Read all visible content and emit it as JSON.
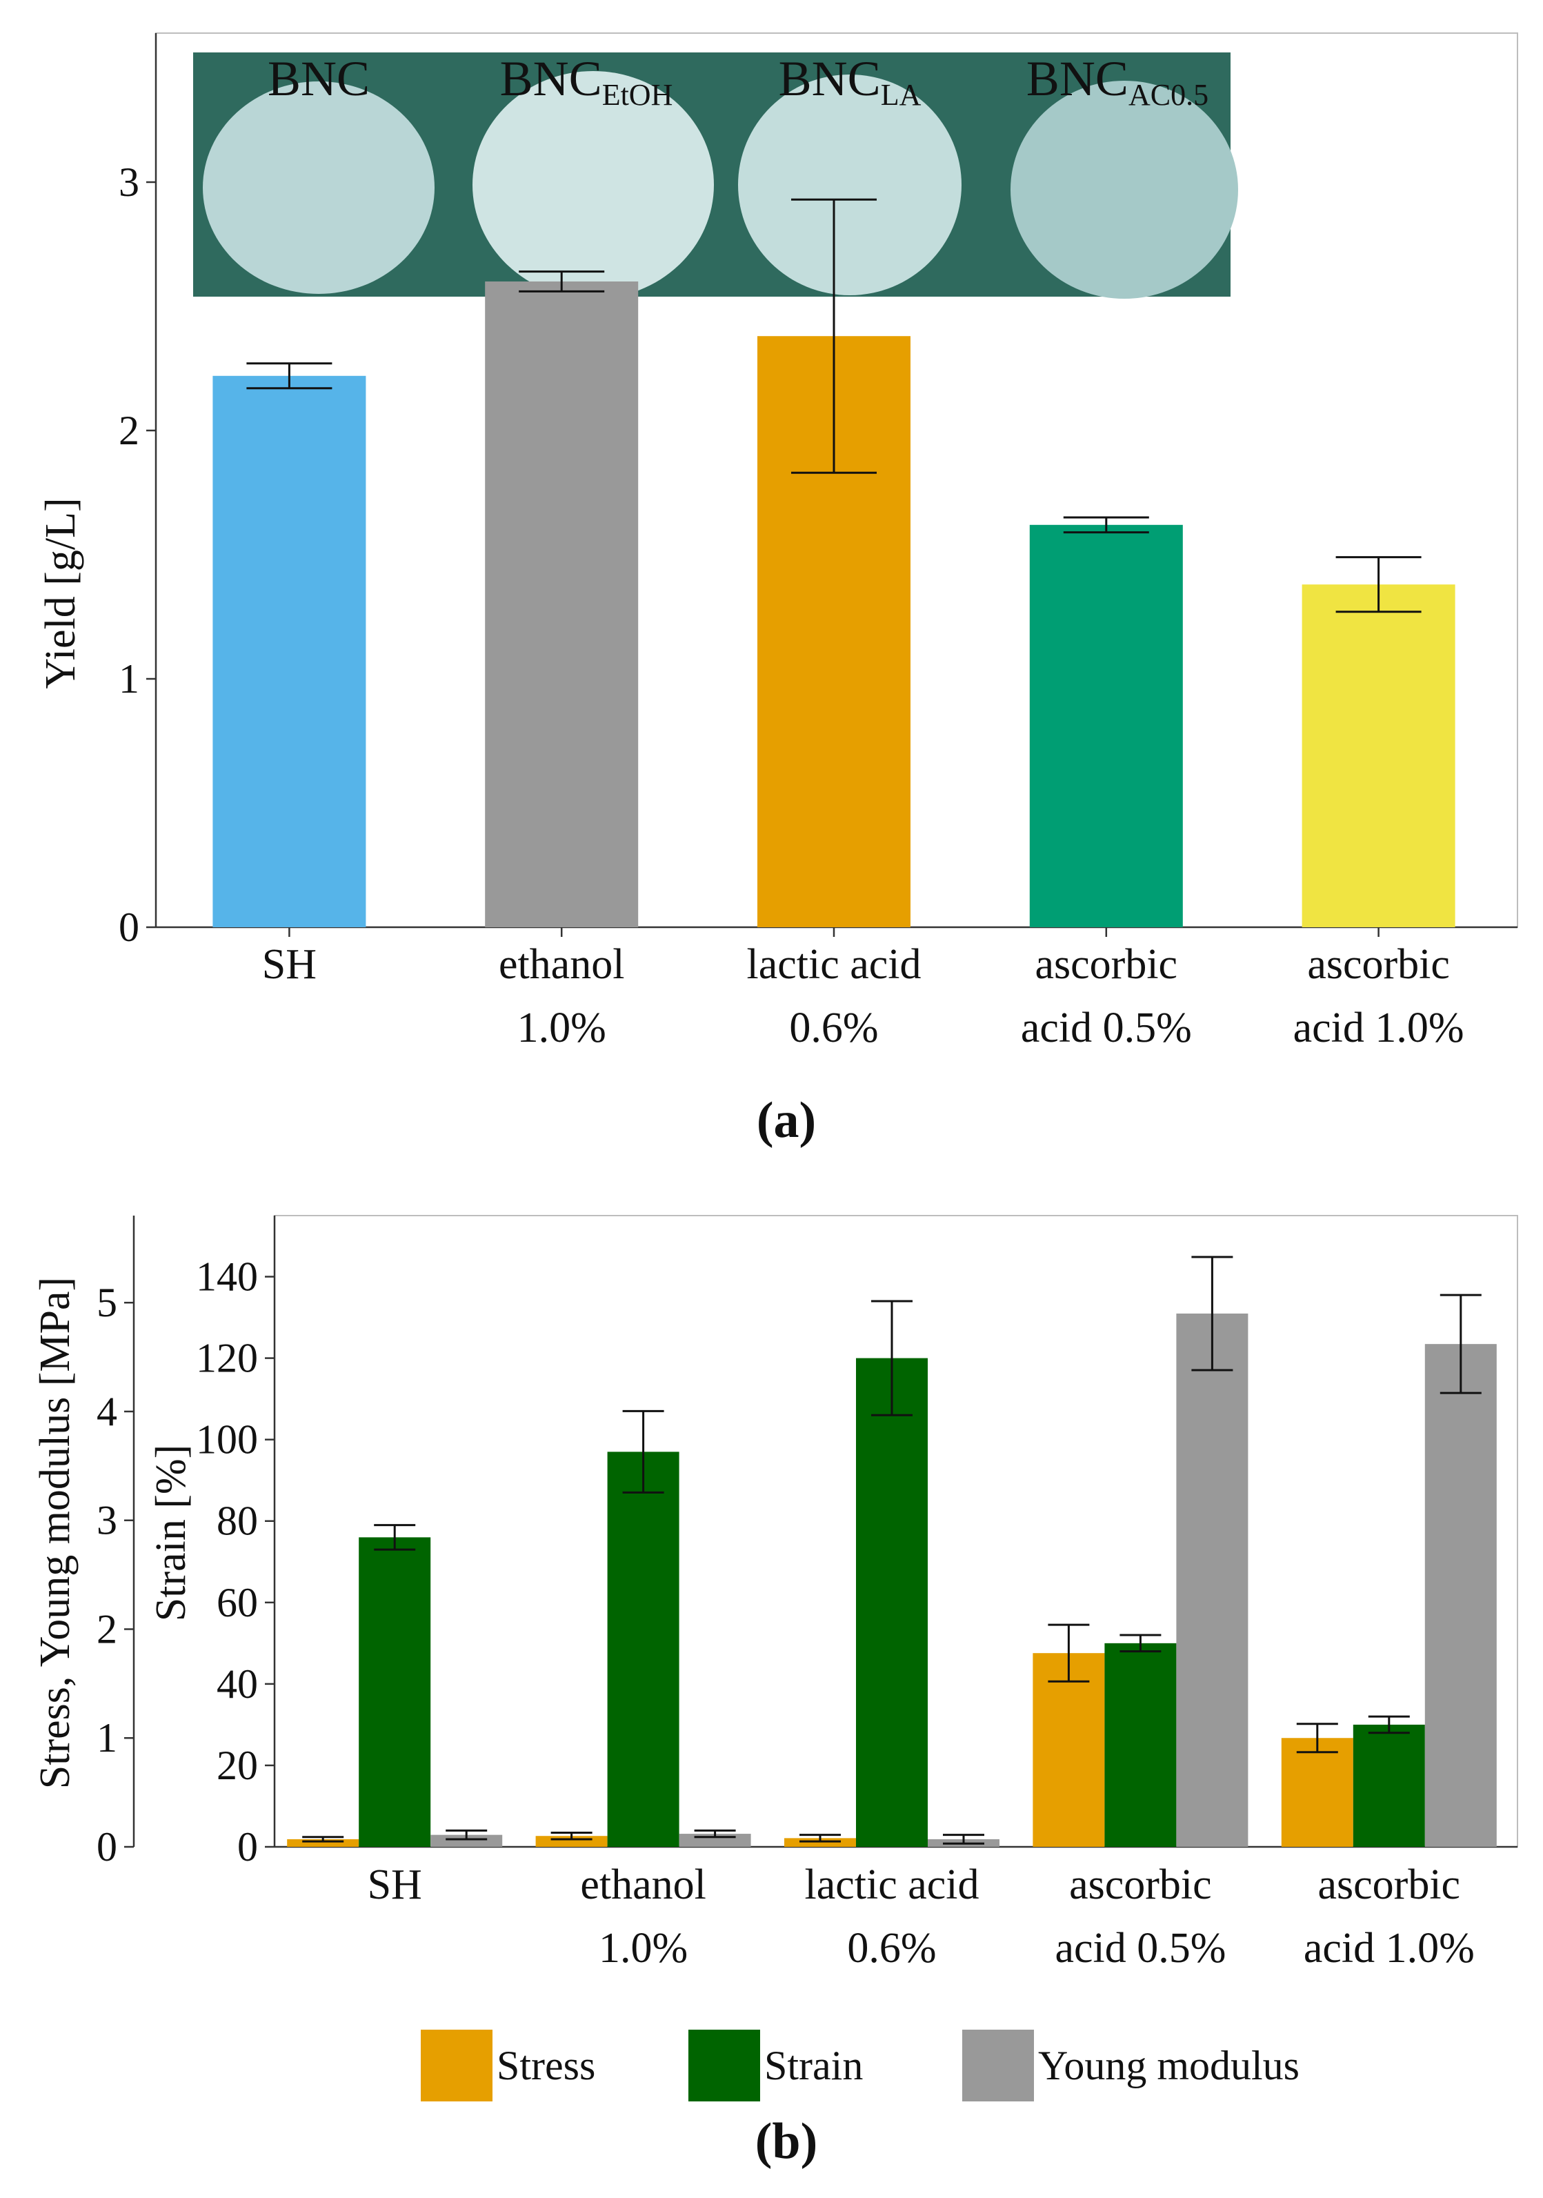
{
  "colors": {
    "sky_blue": "#56B4E9",
    "grey": "#999999",
    "orange": "#E69F00",
    "bluish_green": "#009E73",
    "yellow": "#F0E442",
    "dark_green": "#006400",
    "photo_background": "#2f6a5e",
    "membrane": "#b9d6d6",
    "axis": "#333333"
  },
  "chart_data": [
    {
      "panel_label": "(a)",
      "type": "bar",
      "title": "",
      "xlabel": "",
      "ylabel": "Yield [g/L]",
      "ylim": [
        0,
        3.6
      ],
      "yticks": [
        "0",
        "1",
        "2",
        "3"
      ],
      "grid": false,
      "categories": [
        [
          "SH"
        ],
        [
          "ethanol",
          "1.0%"
        ],
        [
          "lactic acid",
          "0.6%"
        ],
        [
          "ascorbic",
          "acid 0.5%"
        ],
        [
          "ascorbic",
          "acid 1.0%"
        ]
      ],
      "values": [
        2.22,
        2.6,
        2.38,
        1.62,
        1.38
      ],
      "errors": [
        0.05,
        0.04,
        0.55,
        0.03,
        0.11
      ],
      "bar_colors": [
        "#56B4E9",
        "#999999",
        "#E69F00",
        "#009E73",
        "#F0E442"
      ],
      "inset_photo": {
        "labels": [
          {
            "base": "BNC",
            "sub": ""
          },
          {
            "base": "BNC",
            "sub": "EtOH"
          },
          {
            "base": "BNC",
            "sub": "LA"
          },
          {
            "base": "BNC",
            "sub": "AC0.5"
          }
        ]
      }
    },
    {
      "panel_label": "(b)",
      "type": "bar",
      "title": "",
      "xlabel": "",
      "ylabel_left": "Stress, Young modulus [MPa]",
      "ylabel_right": "Strain [%]",
      "ylim_left": [
        0,
        5.8
      ],
      "ylim_strain": [
        0,
        155
      ],
      "yticks_left": [
        "0",
        "1",
        "2",
        "3",
        "4",
        "5"
      ],
      "yticks_strain": [
        "0",
        "20",
        "40",
        "60",
        "80",
        "100",
        "120",
        "140"
      ],
      "grid": false,
      "legend_position": "bottom",
      "categories": [
        [
          "SH"
        ],
        [
          "ethanol",
          "1.0%"
        ],
        [
          "lactic acid",
          "0.6%"
        ],
        [
          "ascorbic",
          "acid 0.5%"
        ],
        [
          "ascorbic",
          "acid 1.0%"
        ]
      ],
      "series": [
        {
          "name": "Stress",
          "axis": "left",
          "color": "#E69F00",
          "values": [
            0.07,
            0.1,
            0.08,
            1.78,
            1.0
          ],
          "errors": [
            0.02,
            0.03,
            0.03,
            0.26,
            0.13
          ]
        },
        {
          "name": "Strain",
          "axis": "strain",
          "color": "#006400",
          "values": [
            76,
            97,
            120,
            50,
            30
          ],
          "errors": [
            3,
            10,
            14,
            2,
            2
          ]
        },
        {
          "name": "Young modulus",
          "axis": "left",
          "color": "#999999",
          "values": [
            0.11,
            0.12,
            0.07,
            4.9,
            4.62
          ],
          "errors": [
            0.04,
            0.03,
            0.04,
            0.52,
            0.45
          ]
        }
      ]
    }
  ]
}
